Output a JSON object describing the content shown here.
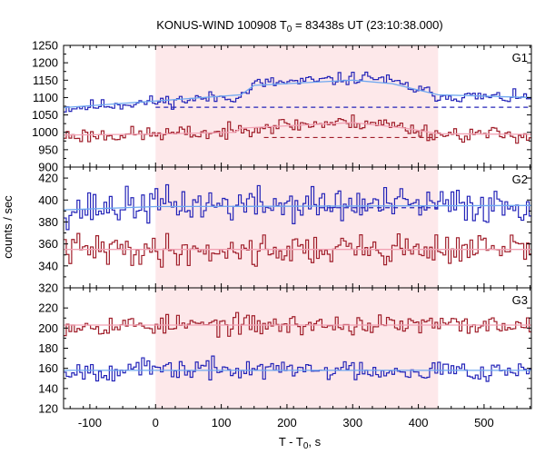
{
  "chart_data": {
    "type": "line",
    "title": {
      "prefix": "KONUS-WIND 100908 T",
      "subscript": "0",
      "suffix": " = 83438s UT (23:10:38.000)"
    },
    "xlabel": {
      "prefix": "T - T",
      "subscript": "0",
      "suffix": ", s"
    },
    "ylabel": "counts / sec",
    "xlim": [
      -140,
      572
    ],
    "x_ticks": [
      -100,
      0,
      100,
      200,
      300,
      400,
      500
    ],
    "x_tick_labels": [
      "-100",
      "0",
      "100",
      "200",
      "300",
      "400",
      "500"
    ],
    "highlight_region": {
      "x_start": 0,
      "x_end": 430,
      "color": "#fde8ea"
    },
    "colors": {
      "blue": "#2323b8",
      "red": "#a01e2a",
      "fit_blue": "#6fa8f0",
      "fit_red": "#f2a2b4"
    },
    "panels": [
      {
        "label": "G1",
        "ylim": [
          900,
          1250
        ],
        "y_ticks": [
          900,
          950,
          1000,
          1050,
          1100,
          1150,
          1200,
          1250
        ],
        "y_tick_labels": [
          "900",
          "950",
          "1000",
          "1050",
          "1100",
          "1150",
          "1200",
          "1250"
        ],
        "series": [
          {
            "color": "blue",
            "step": 4.096,
            "start": -140,
            "levels": [
              [
                -140,
                1070
              ],
              [
                0,
                1088
              ],
              [
                130,
                1105
              ],
              [
                150,
                1140
              ],
              [
                250,
                1148
              ],
              [
                330,
                1160
              ],
              [
                380,
                1132
              ],
              [
                430,
                1105
              ],
              [
                572,
                1098
              ]
            ],
            "noise": 9,
            "seed": 11,
            "fit": [
              [
                -140,
                1071
              ],
              [
                0,
                1090
              ],
              [
                130,
                1108
              ],
              [
                150,
                1135
              ],
              [
                300,
                1150
              ],
              [
                360,
                1140
              ],
              [
                430,
                1108
              ],
              [
                572,
                1100
              ]
            ],
            "background": {
              "y": 1072,
              "x0": 0,
              "x1": 572
            }
          },
          {
            "color": "red",
            "step": 4.096,
            "start": -140,
            "levels": [
              [
                -140,
                990
              ],
              [
                0,
                995
              ],
              [
                120,
                1000
              ],
              [
                130,
                1015
              ],
              [
                250,
                1025
              ],
              [
                330,
                1030
              ],
              [
                380,
                1012
              ],
              [
                430,
                995
              ],
              [
                572,
                993
              ]
            ],
            "noise": 11,
            "seed": 23,
            "fit": [
              [
                -140,
                992
              ],
              [
                0,
                995
              ],
              [
                120,
                1000
              ],
              [
                130,
                1012
              ],
              [
                300,
                1028
              ],
              [
                380,
                1012
              ],
              [
                430,
                996
              ],
              [
                572,
                994
              ]
            ],
            "background": {
              "y": 985,
              "x0": 165,
              "x1": 430
            }
          }
        ]
      },
      {
        "label": "G2",
        "ylim": [
          320,
          430
        ],
        "y_ticks": [
          320,
          340,
          360,
          380,
          400,
          420
        ],
        "y_tick_labels": [
          "320",
          "340",
          "360",
          "380",
          "400",
          "420"
        ],
        "series": [
          {
            "color": "blue",
            "step": 4.096,
            "start": -140,
            "levels": [
              [
                -140,
                391
              ],
              [
                0,
                396
              ],
              [
                572,
                395
              ]
            ],
            "noise": 8,
            "seed": 37,
            "fit": [
              [
                -140,
                391
              ],
              [
                0,
                394
              ],
              [
                572,
                395
              ]
            ],
            "background": {
              "y": 393,
              "x0": 250,
              "x1": 430
            }
          },
          {
            "color": "red",
            "step": 4.096,
            "start": -140,
            "levels": [
              [
                -140,
                355
              ],
              [
                0,
                354
              ],
              [
                572,
                356
              ]
            ],
            "noise": 7,
            "seed": 41,
            "fit": [
              [
                -140,
                355
              ],
              [
                0,
                355
              ],
              [
                572,
                355
              ]
            ],
            "background": null
          }
        ]
      },
      {
        "label": "G3",
        "ylim": [
          120,
          240
        ],
        "y_ticks": [
          120,
          140,
          160,
          180,
          200,
          220
        ],
        "y_tick_labels": [
          "120",
          "140",
          "160",
          "180",
          "200",
          "220"
        ],
        "series": [
          {
            "color": "red",
            "step": 4.096,
            "start": -140,
            "levels": [
              [
                -140,
                203
              ],
              [
                0,
                203
              ],
              [
                572,
                203
              ]
            ],
            "noise": 5,
            "seed": 53,
            "fit": [
              [
                -140,
                203
              ],
              [
                0,
                203
              ],
              [
                572,
                203
              ]
            ],
            "background": null
          },
          {
            "color": "blue",
            "step": 4.096,
            "start": -140,
            "levels": [
              [
                -140,
                158
              ],
              [
                0,
                159
              ],
              [
                572,
                158
              ]
            ],
            "noise": 5,
            "seed": 67,
            "fit": [
              [
                -140,
                158
              ],
              [
                0,
                158
              ],
              [
                572,
                158
              ]
            ],
            "background": null
          }
        ]
      }
    ]
  }
}
